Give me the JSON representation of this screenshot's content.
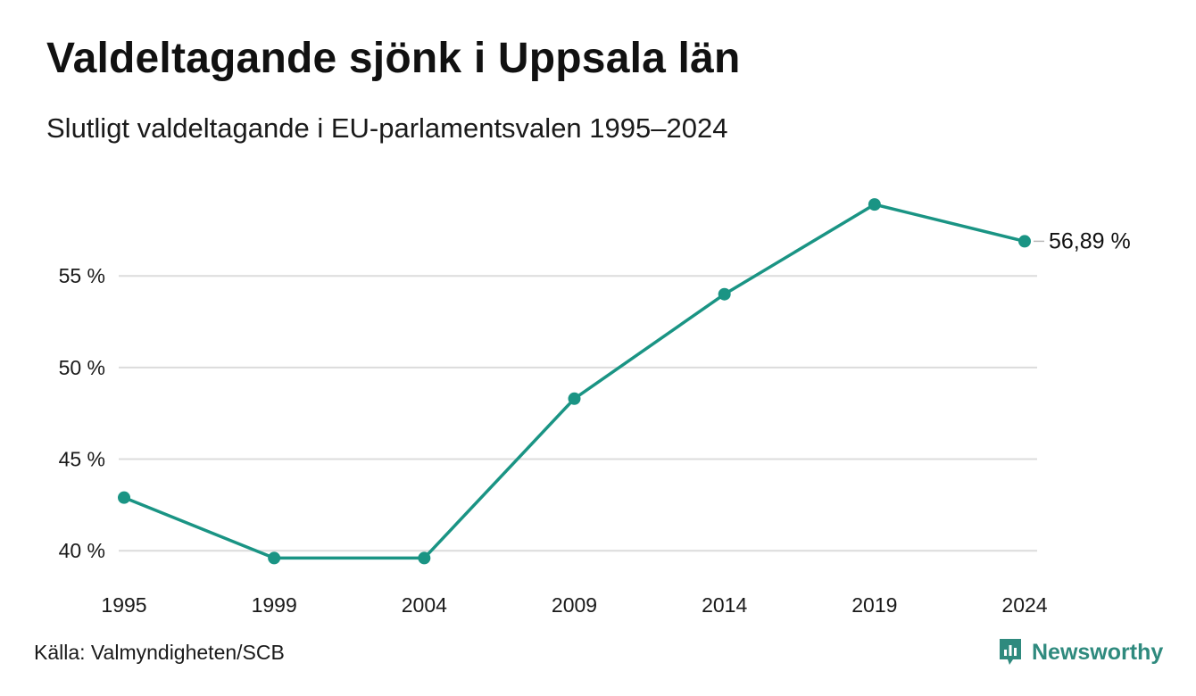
{
  "title": "Valdeltagande sjönk i Uppsala län",
  "subtitle": "Slutligt valdeltagande i EU-parlamentsvalen 1995–2024",
  "source": "Källa: Valmyndigheten/SCB",
  "brand": {
    "name": "Newsworthy",
    "icon": "newsworthy-logo-icon",
    "color": "#2f8a7e"
  },
  "chart_data": {
    "type": "line",
    "x": [
      "1995",
      "1999",
      "2004",
      "2009",
      "2014",
      "2019",
      "2024"
    ],
    "series": [
      {
        "values": [
          42.9,
          39.6,
          39.6,
          48.3,
          54.0,
          58.9,
          56.89
        ],
        "color": "#1a9484"
      }
    ],
    "ylim": [
      38.5,
      61
    ],
    "yticks": [
      40,
      45,
      50,
      55
    ],
    "ytick_labels": [
      "40 %",
      "45 %",
      "50 %",
      "55 %"
    ],
    "grid": true,
    "end_label": "56,89 %",
    "xlabel": "",
    "ylabel": ""
  }
}
